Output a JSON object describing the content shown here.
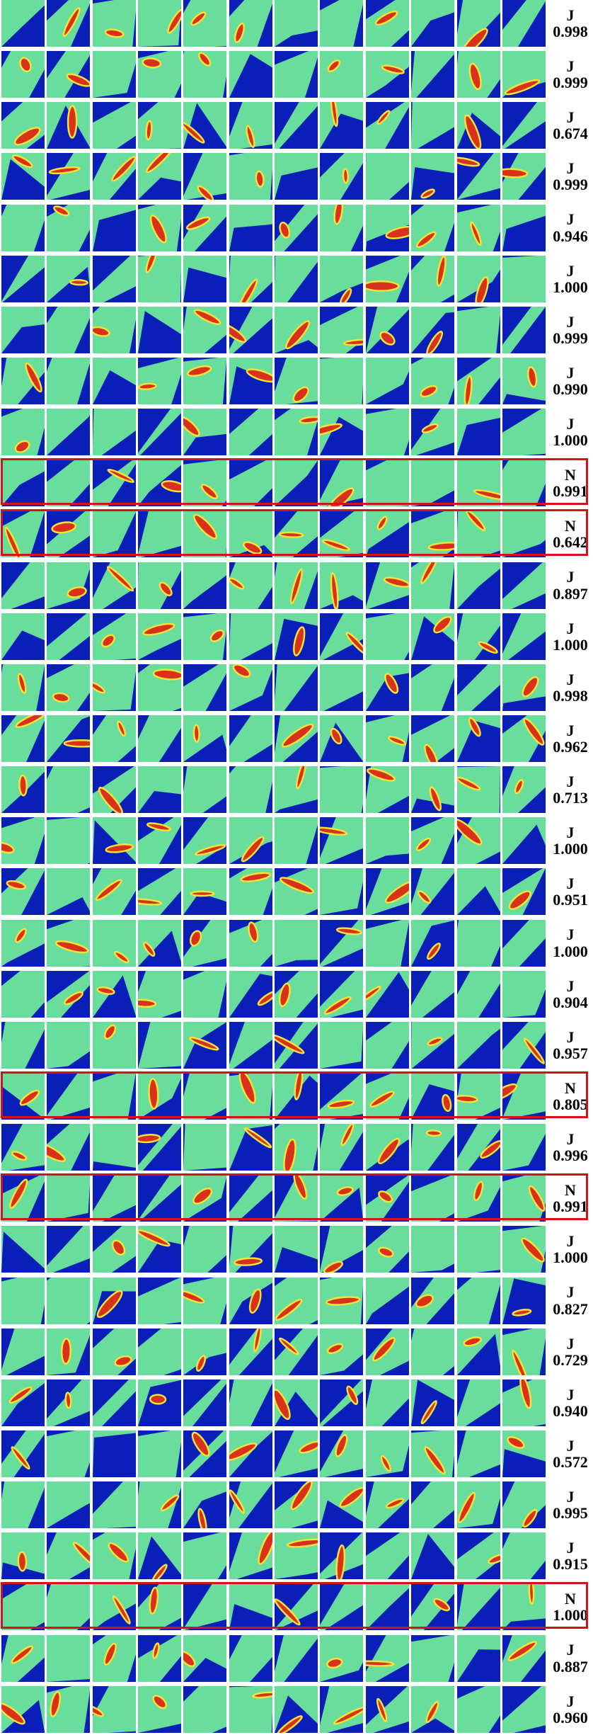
{
  "colors": {
    "background_blue": "#0a1fb8",
    "tissue_green": "#6fe89a",
    "vessel_red": "#d8321a",
    "vessel_yellow": "#f2e23a",
    "highlight_frame": "#d0141a"
  },
  "tiles_per_row": 12,
  "rows": [
    {
      "cls": "J",
      "score": "0.998",
      "highlighted": false
    },
    {
      "cls": "J",
      "score": "0.999",
      "highlighted": false
    },
    {
      "cls": "J",
      "score": "0.674",
      "highlighted": false
    },
    {
      "cls": "J",
      "score": "0.999",
      "highlighted": false
    },
    {
      "cls": "J",
      "score": "0.946",
      "highlighted": false
    },
    {
      "cls": "J",
      "score": "1.000",
      "highlighted": false
    },
    {
      "cls": "J",
      "score": "0.999",
      "highlighted": false
    },
    {
      "cls": "J",
      "score": "0.990",
      "highlighted": false
    },
    {
      "cls": "J",
      "score": "1.000",
      "highlighted": false
    },
    {
      "cls": "N",
      "score": "0.991",
      "highlighted": true
    },
    {
      "cls": "N",
      "score": "0.642",
      "highlighted": true
    },
    {
      "cls": "J",
      "score": "0.897",
      "highlighted": false
    },
    {
      "cls": "J",
      "score": "1.000",
      "highlighted": false
    },
    {
      "cls": "J",
      "score": "0.998",
      "highlighted": false
    },
    {
      "cls": "J",
      "score": "0.962",
      "highlighted": false
    },
    {
      "cls": "J",
      "score": "0.713",
      "highlighted": false
    },
    {
      "cls": "J",
      "score": "1.000",
      "highlighted": false
    },
    {
      "cls": "J",
      "score": "0.951",
      "highlighted": false
    },
    {
      "cls": "J",
      "score": "1.000",
      "highlighted": false
    },
    {
      "cls": "J",
      "score": "0.904",
      "highlighted": false
    },
    {
      "cls": "J",
      "score": "0.957",
      "highlighted": false
    },
    {
      "cls": "N",
      "score": "0.805",
      "highlighted": true
    },
    {
      "cls": "J",
      "score": "0.996",
      "highlighted": false
    },
    {
      "cls": "N",
      "score": "0.991",
      "highlighted": true
    },
    {
      "cls": "J",
      "score": "1.000",
      "highlighted": false
    },
    {
      "cls": "J",
      "score": "0.827",
      "highlighted": false
    },
    {
      "cls": "J",
      "score": "0.729",
      "highlighted": false
    },
    {
      "cls": "J",
      "score": "0.940",
      "highlighted": false
    },
    {
      "cls": "J",
      "score": "0.572",
      "highlighted": false
    },
    {
      "cls": "J",
      "score": "0.995",
      "highlighted": false
    },
    {
      "cls": "J",
      "score": "0.915",
      "highlighted": false
    },
    {
      "cls": "N",
      "score": "1.000",
      "highlighted": true
    },
    {
      "cls": "J",
      "score": "0.887",
      "highlighted": false
    },
    {
      "cls": "J",
      "score": "0.960",
      "highlighted": false
    }
  ]
}
